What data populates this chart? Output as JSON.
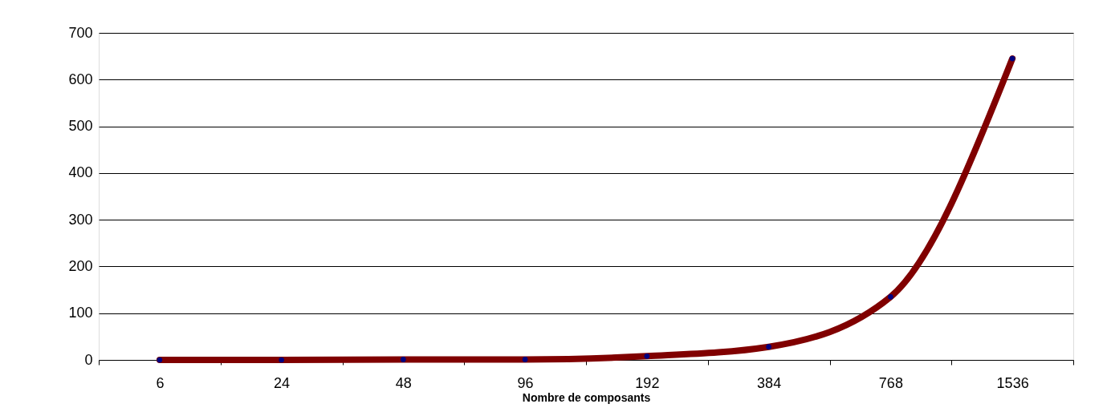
{
  "chart_data": {
    "type": "line",
    "xlabel": "Nombre de composants",
    "categories": [
      "6",
      "24",
      "48",
      "96",
      "192",
      "384",
      "768",
      "1536"
    ],
    "series": [
      {
        "color": "#800000",
        "values": [
          0,
          0,
          1,
          1,
          8,
          28,
          135,
          645
        ]
      }
    ],
    "ylim": [
      0,
      700
    ],
    "yticks": [
      0,
      100,
      200,
      300,
      400,
      500,
      600,
      700
    ],
    "grid": "y",
    "marker": "circle",
    "line_style": "solid"
  }
}
